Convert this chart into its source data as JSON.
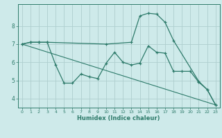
{
  "xlabel": "Humidex (Indice chaleur)",
  "xlim": [
    -0.5,
    23.5
  ],
  "ylim": [
    3.5,
    9.2
  ],
  "xticks": [
    0,
    1,
    2,
    3,
    4,
    5,
    6,
    7,
    8,
    9,
    10,
    11,
    12,
    13,
    14,
    15,
    16,
    17,
    18,
    19,
    20,
    21,
    22,
    23
  ],
  "yticks": [
    4,
    5,
    6,
    7,
    8
  ],
  "background_color": "#ceeaea",
  "grid_color": "#aecece",
  "line_color": "#2d7a6a",
  "line1_x": [
    0,
    1,
    2,
    3,
    10,
    13,
    14,
    15,
    16,
    17,
    18,
    21,
    22,
    23
  ],
  "line1_y": [
    7.0,
    7.1,
    7.1,
    7.1,
    7.0,
    7.1,
    8.55,
    8.7,
    8.65,
    8.2,
    7.2,
    4.95,
    4.5,
    3.65
  ],
  "line2_x": [
    0,
    1,
    2,
    3,
    4,
    5,
    6,
    7,
    8,
    9,
    10,
    11,
    12,
    13,
    14,
    15,
    16,
    17,
    18,
    19,
    20,
    21,
    22,
    23
  ],
  "line2_y": [
    7.0,
    7.1,
    7.1,
    7.1,
    5.85,
    4.85,
    4.85,
    5.35,
    5.2,
    5.1,
    5.95,
    6.55,
    6.0,
    5.85,
    5.95,
    6.9,
    6.55,
    6.5,
    5.5,
    5.5,
    5.5,
    4.9,
    4.5,
    3.65
  ],
  "line3_x": [
    0,
    23
  ],
  "line3_y": [
    7.0,
    3.65
  ]
}
